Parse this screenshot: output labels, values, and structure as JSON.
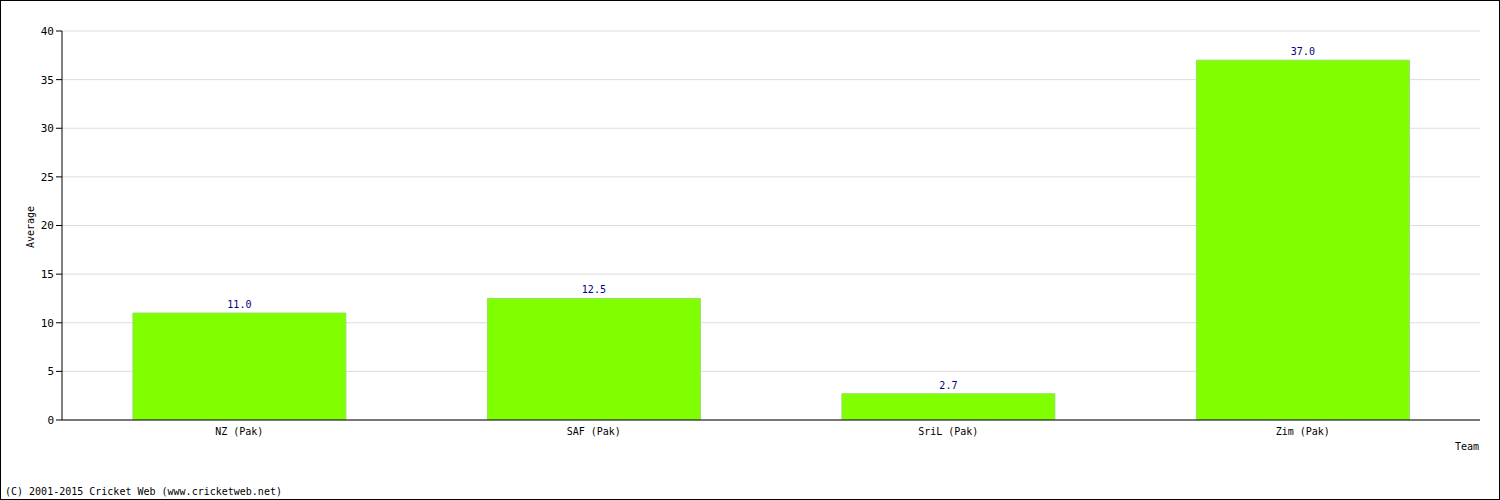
{
  "chart_data": {
    "type": "bar",
    "categories": [
      "NZ (Pak)",
      "SAF (Pak)",
      "SriL (Pak)",
      "Zim (Pak)"
    ],
    "values": [
      11.0,
      12.5,
      2.7,
      37.0
    ],
    "value_labels": [
      "11.0",
      "12.5",
      "2.7",
      "37.0"
    ],
    "data_labels": true,
    "color": "#80ff00",
    "x_label": "Team",
    "y_label": "Average",
    "ylim": [
      0,
      40
    ],
    "yticks": [
      0,
      5,
      10,
      15,
      20,
      25,
      30,
      35,
      40
    ],
    "grid": true,
    "annotation": "(C) 2001-2015 Cricket Web (www.cricketweb.net)"
  }
}
